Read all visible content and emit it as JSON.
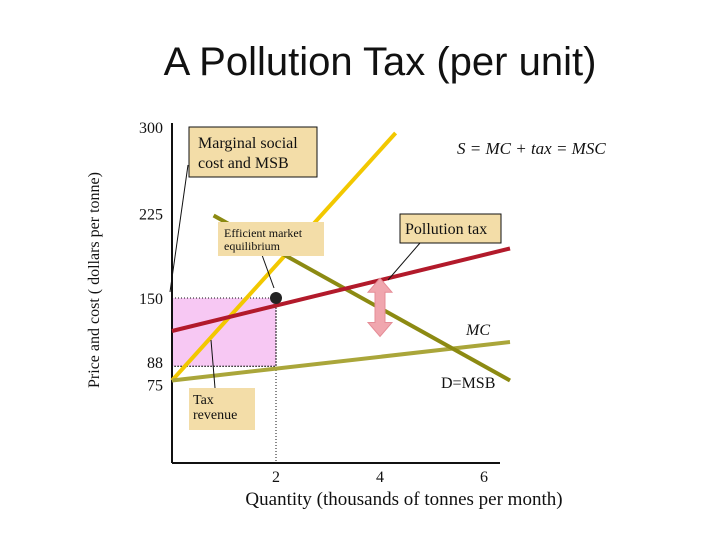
{
  "slide": {
    "title": "A Pollution Tax (per unit)"
  },
  "chart_data": {
    "type": "line",
    "title": "A Pollution Tax (per unit)",
    "xlabel": "Quantity (thousands of tonnes per month)",
    "ylabel": "Price and cost ( dollars per tonne)",
    "xlim": [
      0,
      6.5
    ],
    "ylim": [
      0,
      300
    ],
    "x_ticks": [
      "2",
      "4",
      "6"
    ],
    "x_tick_values": [
      2,
      4,
      6
    ],
    "y_ticks": [
      "300",
      "225",
      "150",
      "88",
      "75"
    ],
    "y_tick_values": [
      300,
      225,
      150,
      88,
      75
    ],
    "grid": false,
    "series": [
      {
        "name": "S = MC + tax = MSC",
        "color": "#F2C800",
        "x": [
          0,
          4.3
        ],
        "y": [
          75,
          300
        ]
      },
      {
        "name": "MC",
        "color": "#AAA63A",
        "x": [
          0,
          6.5
        ],
        "y": [
          75,
          110
        ]
      },
      {
        "name": "D=MSB",
        "color": "#8C8A12",
        "x": [
          0.8,
          6.5
        ],
        "y": [
          225,
          75
        ]
      },
      {
        "name": "",
        "color": "#B21A2B",
        "x": [
          0,
          6.5
        ],
        "y": [
          120,
          195
        ]
      }
    ],
    "equilibrium": {
      "x": 2,
      "y": 150
    },
    "tax_revenue_area": {
      "x": [
        0,
        2
      ],
      "y": [
        88,
        150
      ],
      "color": "#F7C8F3"
    },
    "tax_arrow": {
      "x": 4,
      "y": [
        115,
        168
      ],
      "color": "#F0A6AE"
    },
    "annotations": {
      "msc_msb_box": "Marginal social cost and MSB",
      "supply_label": "S = MC + tax = MSC",
      "efficient_box": "Efficient market equilibrium",
      "tax_box": "Pollution tax",
      "mc_label": "MC",
      "demand_label": "D=MSB",
      "revenue_box": "Tax revenue"
    }
  }
}
